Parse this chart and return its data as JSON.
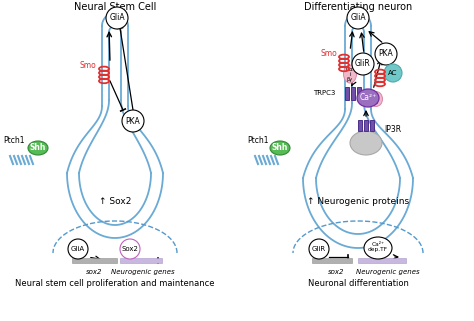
{
  "bg_color": "#ffffff",
  "title_left": "Neural Stem Cell",
  "title_right": "Differentiating neuron",
  "bottom_left_title": "Neural stem cell proliferation and maintenance",
  "bottom_right_title": "Neuronal differentiation",
  "left_upregulated": "↑ Sox2",
  "right_upregulated": "↑ Neurogenic proteins",
  "cell_color": "#6aaad4",
  "smo_color": "#e03030",
  "shh_color": "#55bb55",
  "ca_color": "#9b6fc0",
  "gprotein_color": "#f0b8c8",
  "ac_color": "#70c8c8",
  "trpc3_color": "#7050a8",
  "er_color": "#c8c8c8"
}
